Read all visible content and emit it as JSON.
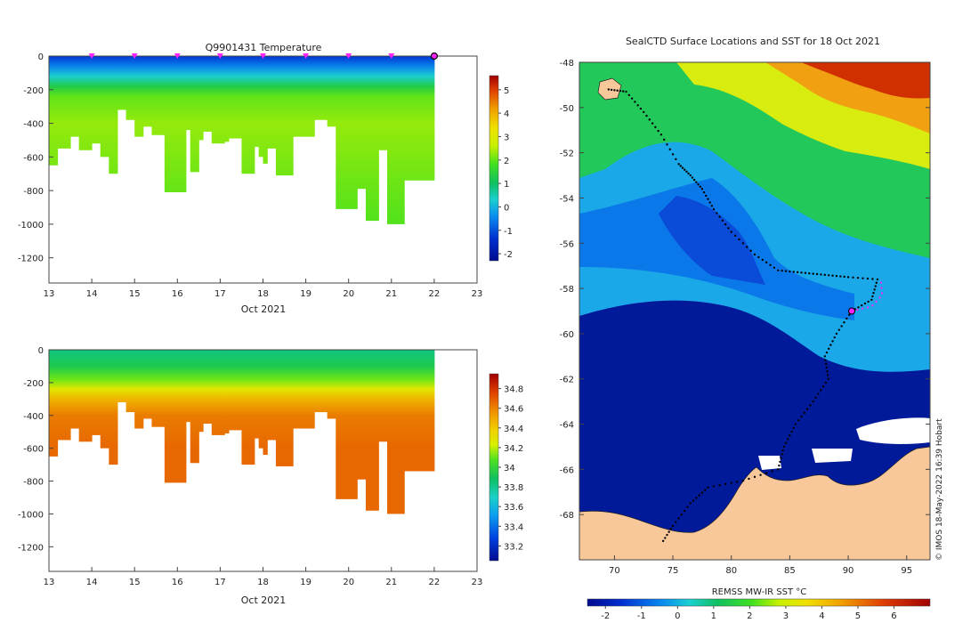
{
  "chart_data": [
    {
      "type": "heatmap",
      "title": "Q9901431  Temperature",
      "xlabel": "Oct 2021",
      "ylabel": "",
      "x_ticks": [
        "13",
        "14",
        "15",
        "16",
        "17",
        "18",
        "19",
        "20",
        "21",
        "22",
        "23"
      ],
      "x_range": [
        13,
        23
      ],
      "y_ticks": [
        "0",
        "-200",
        "-400",
        "-600",
        "-800",
        "-1000",
        "-1200"
      ],
      "y_range": [
        -1350,
        0
      ],
      "colorbar_ticks": [
        "5",
        "4",
        "3",
        "2",
        "1",
        "0",
        "-1",
        "-2"
      ],
      "colorbar_range": [
        -2.3,
        5.6
      ],
      "data_end_day": 22,
      "profile_dives": [
        {
          "day": 13.0,
          "depth": 650
        },
        {
          "day": 13.2,
          "depth": 550
        },
        {
          "day": 13.5,
          "depth": 480
        },
        {
          "day": 13.7,
          "depth": 560
        },
        {
          "day": 14.0,
          "depth": 520
        },
        {
          "day": 14.2,
          "depth": 600
        },
        {
          "day": 14.4,
          "depth": 700
        },
        {
          "day": 14.6,
          "depth": 320
        },
        {
          "day": 14.8,
          "depth": 380
        },
        {
          "day": 15.0,
          "depth": 480
        },
        {
          "day": 15.2,
          "depth": 420
        },
        {
          "day": 15.4,
          "depth": 470
        },
        {
          "day": 15.7,
          "depth": 810
        },
        {
          "day": 16.2,
          "depth": 440
        },
        {
          "day": 16.3,
          "depth": 690
        },
        {
          "day": 16.5,
          "depth": 500
        },
        {
          "day": 16.6,
          "depth": 450
        },
        {
          "day": 16.8,
          "depth": 520
        },
        {
          "day": 17.1,
          "depth": 510
        },
        {
          "day": 17.2,
          "depth": 490
        },
        {
          "day": 17.5,
          "depth": 700
        },
        {
          "day": 17.8,
          "depth": 540
        },
        {
          "day": 17.9,
          "depth": 600
        },
        {
          "day": 18.0,
          "depth": 640
        },
        {
          "day": 18.1,
          "depth": 550
        },
        {
          "day": 18.3,
          "depth": 710
        },
        {
          "day": 18.7,
          "depth": 480
        },
        {
          "day": 19.2,
          "depth": 380
        },
        {
          "day": 19.5,
          "depth": 420
        },
        {
          "day": 19.7,
          "depth": 910
        },
        {
          "day": 20.2,
          "depth": 790
        },
        {
          "day": 20.4,
          "depth": 980
        },
        {
          "day": 20.7,
          "depth": 560
        },
        {
          "day": 20.9,
          "depth": 1000
        },
        {
          "day": 21.3,
          "depth": 740
        }
      ],
      "temperature_layers": [
        {
          "depth": 0,
          "value": -1.3
        },
        {
          "depth": 60,
          "value": -0.5
        },
        {
          "depth": 120,
          "value": 0.3
        },
        {
          "depth": 180,
          "value": 1.3
        },
        {
          "depth": 240,
          "value": 2.0
        },
        {
          "depth": 400,
          "value": 2.3
        },
        {
          "depth": 700,
          "value": 2.1
        },
        {
          "depth": 1000,
          "value": 1.9
        }
      ],
      "markers": {
        "triangle_days": [
          14,
          15,
          16,
          17,
          18,
          19,
          20,
          21
        ],
        "circle_day": 22
      }
    },
    {
      "type": "heatmap",
      "title": "",
      "xlabel": "Oct 2021",
      "ylabel": "",
      "x_ticks": [
        "13",
        "14",
        "15",
        "16",
        "17",
        "18",
        "19",
        "20",
        "21",
        "22",
        "23"
      ],
      "x_range": [
        13,
        23
      ],
      "y_ticks": [
        "0",
        "-200",
        "-400",
        "-600",
        "-800",
        "-1000",
        "-1200"
      ],
      "y_range": [
        -1350,
        0
      ],
      "colorbar_ticks": [
        "34.8",
        "34.6",
        "34.4",
        "34.2",
        "34",
        "33.8",
        "33.6",
        "33.4",
        "33.2"
      ],
      "colorbar_range": [
        33.05,
        34.95
      ],
      "salinity_layers": [
        {
          "depth": 0,
          "value": 33.8
        },
        {
          "depth": 100,
          "value": 33.9
        },
        {
          "depth": 180,
          "value": 34.1
        },
        {
          "depth": 240,
          "value": 34.35
        },
        {
          "depth": 300,
          "value": 34.55
        },
        {
          "depth": 400,
          "value": 34.68
        },
        {
          "depth": 600,
          "value": 34.72
        },
        {
          "depth": 1000,
          "value": 34.72
        }
      ]
    },
    {
      "type": "heatmap",
      "title": "SealCTD Surface Locations and SST for 18 Oct 2021",
      "colorbar_label": "REMSS MW-IR SST °C",
      "lon_range": [
        67,
        97
      ],
      "lat_range": [
        -70,
        -48
      ],
      "x_ticks": [
        "70",
        "75",
        "80",
        "85",
        "90",
        "95"
      ],
      "y_ticks": [
        "-48",
        "-50",
        "-52",
        "-54",
        "-56",
        "-58",
        "-60",
        "-62",
        "-64",
        "-66",
        "-68"
      ],
      "colorbar_ticks": [
        "-2",
        "-1",
        "0",
        "1",
        "2",
        "3",
        "4",
        "5",
        "6"
      ],
      "colorbar_range": [
        -2.5,
        7
      ],
      "track": [
        [
          69.5,
          -49.2
        ],
        [
          71.0,
          -49.3
        ],
        [
          72.5,
          -50.2
        ],
        [
          74.0,
          -51.2
        ],
        [
          75.5,
          -52.5
        ],
        [
          76.5,
          -53.0
        ],
        [
          77.5,
          -53.6
        ],
        [
          78.5,
          -54.5
        ],
        [
          80.0,
          -55.5
        ],
        [
          82.0,
          -56.5
        ],
        [
          84.0,
          -57.2
        ],
        [
          86.0,
          -57.3
        ],
        [
          88.0,
          -57.4
        ],
        [
          90.0,
          -57.5
        ],
        [
          92.5,
          -57.6
        ],
        [
          92.0,
          -58.5
        ],
        [
          90.3,
          -59.0
        ],
        [
          89.0,
          -60.0
        ],
        [
          88.0,
          -61.0
        ],
        [
          88.3,
          -62.0
        ],
        [
          87.0,
          -63.0
        ],
        [
          85.5,
          -64.0
        ],
        [
          84.5,
          -65.0
        ],
        [
          84.0,
          -66.0
        ],
        [
          81.0,
          -66.5
        ],
        [
          78.0,
          -66.8
        ],
        [
          76.5,
          -67.5
        ],
        [
          75.0,
          -68.5
        ],
        [
          74.0,
          -69.3
        ]
      ],
      "recent_track": [
        [
          92.8,
          -57.7
        ],
        [
          92.9,
          -58.3
        ],
        [
          92.0,
          -58.8
        ],
        [
          90.3,
          -59.0
        ]
      ],
      "current_position": [
        90.3,
        -59.0
      ],
      "credit": "© IMOS 18-May-2022 16:39 Hobart"
    }
  ]
}
